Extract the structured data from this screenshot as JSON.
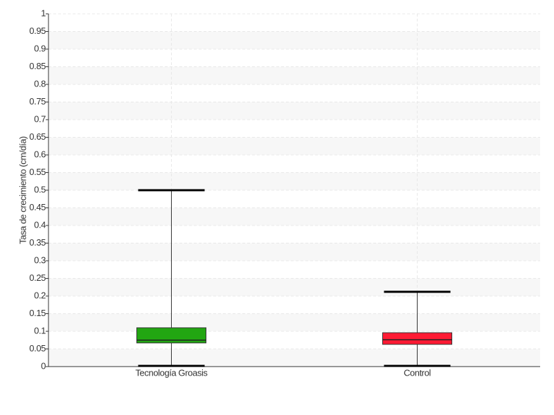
{
  "chart_data": {
    "type": "box",
    "y_label": "Tasa de crecimiento (cm/día)",
    "categories": [
      "Tecnología Groasis",
      "Control"
    ],
    "boxes": [
      {
        "min": 0,
        "q1": 0.067,
        "median": 0.075,
        "q3": 0.11,
        "max": 0.5,
        "color": "#22a612"
      },
      {
        "min": 0,
        "q1": 0.063,
        "median": 0.076,
        "q3": 0.096,
        "max": 0.212,
        "color": "#ff1a33"
      }
    ],
    "ylim": [
      0,
      1
    ],
    "yticks": [
      0,
      0.05,
      0.1,
      0.15,
      0.2,
      0.25,
      0.3,
      0.35,
      0.4,
      0.45,
      0.5,
      0.55,
      0.6,
      0.65,
      0.7,
      0.75,
      0.8,
      0.85,
      0.9,
      0.95,
      1
    ],
    "grid": true
  }
}
